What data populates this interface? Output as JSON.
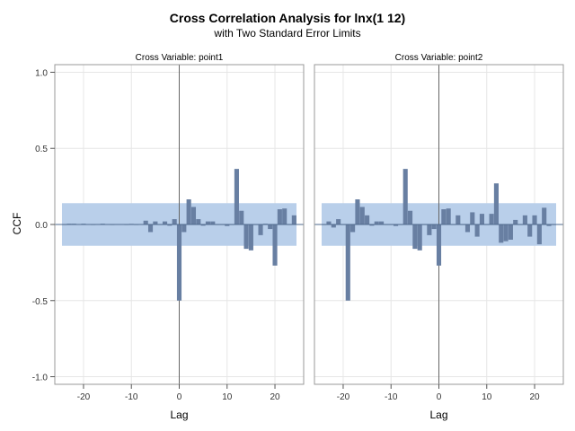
{
  "chart_data": {
    "type": "bar",
    "title": "Cross Correlation Analysis for lnx(1 12)",
    "subtitle": "with Two Standard Error Limits",
    "xlabel": "Lag",
    "ylabel": "CCF",
    "xlim": [
      -26,
      26
    ],
    "ylim": [
      -1.05,
      1.05
    ],
    "x_ticks": [
      -20,
      -10,
      0,
      10,
      20
    ],
    "y_ticks": [
      -1.0,
      -0.5,
      0.0,
      0.5,
      1.0
    ],
    "y_tick_labels": [
      "-1.0",
      "-0.5",
      "0.0",
      "0.5",
      "1.0"
    ],
    "x_tick_labels": [
      "-20",
      "-10",
      "0",
      "10",
      "20"
    ],
    "grid": true,
    "colors": {
      "bar": "#687FA2",
      "band": "#B9CFEA",
      "zero_line": "#4E6A8C",
      "grid": "#E6E6E6",
      "frame": "#999999"
    },
    "panels": [
      {
        "label": "Cross Variable: point1",
        "std_err_limit": 0.14,
        "lags": [
          -24,
          -23,
          -22,
          -21,
          -20,
          -19,
          -18,
          -17,
          -16,
          -15,
          -14,
          -13,
          -12,
          -11,
          -10,
          -9,
          -8,
          -7,
          -6,
          -5,
          -4,
          -3,
          -2,
          -1,
          0,
          1,
          2,
          3,
          4,
          5,
          6,
          7,
          8,
          9,
          10,
          11,
          12,
          13,
          14,
          15,
          16,
          17,
          18,
          19,
          20,
          21,
          22,
          23,
          24
        ],
        "values": [
          0.0,
          0.005,
          0.005,
          0.003,
          0.005,
          0.002,
          -0.003,
          0.003,
          0.005,
          0.002,
          -0.003,
          0.002,
          0.002,
          -0.003,
          0.004,
          0.0,
          0.003,
          0.025,
          -0.05,
          0.02,
          0.0,
          0.02,
          -0.008,
          0.035,
          -0.5,
          -0.05,
          0.165,
          0.115,
          0.035,
          -0.008,
          0.02,
          0.02,
          0.0,
          0.0,
          -0.01,
          0.0,
          0.365,
          0.09,
          -0.16,
          -0.17,
          0.0,
          -0.07,
          0.005,
          -0.03,
          -0.27,
          0.1,
          0.105,
          0.0,
          0.06
        ]
      },
      {
        "label": "Cross Variable: point2",
        "std_err_limit": 0.14,
        "lags": [
          -24,
          -23,
          -22,
          -21,
          -20,
          -19,
          -18,
          -17,
          -16,
          -15,
          -14,
          -13,
          -12,
          -11,
          -10,
          -9,
          -8,
          -7,
          -6,
          -5,
          -4,
          -3,
          -2,
          -1,
          0,
          1,
          2,
          3,
          4,
          5,
          6,
          7,
          8,
          9,
          10,
          11,
          12,
          13,
          14,
          15,
          16,
          17,
          18,
          19,
          20,
          21,
          22,
          23,
          24
        ],
        "values": [
          0.0,
          0.02,
          -0.02,
          0.035,
          0.0,
          -0.5,
          -0.05,
          0.165,
          0.115,
          0.06,
          -0.008,
          0.02,
          0.02,
          0.0,
          0.0,
          -0.01,
          0.0,
          0.365,
          0.09,
          -0.16,
          -0.17,
          0.0,
          -0.07,
          -0.03,
          -0.27,
          0.1,
          0.105,
          0.0,
          0.06,
          0.0,
          -0.05,
          0.08,
          -0.08,
          0.07,
          0.0,
          0.07,
          0.27,
          -0.12,
          -0.11,
          -0.1,
          0.03,
          0.0,
          0.06,
          -0.08,
          0.06,
          -0.13,
          0.11,
          -0.01,
          0.0
        ]
      }
    ]
  }
}
